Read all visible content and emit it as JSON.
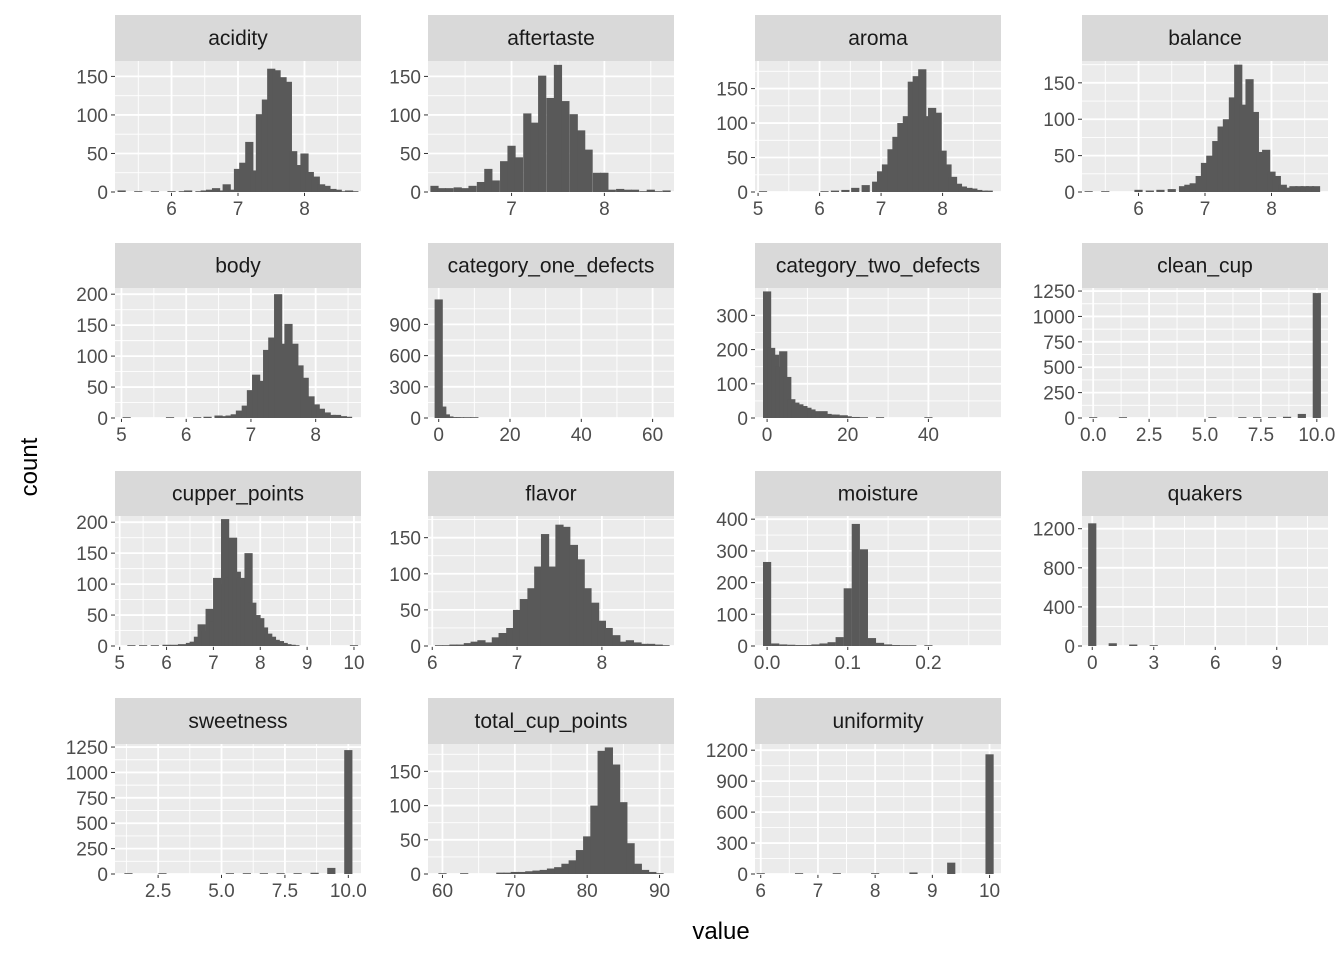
{
  "colors": {
    "panel_background": "#EBEBEB",
    "strip_background": "#D9D9D9",
    "grid_major": "#FFFFFF",
    "bar_fill": "#595959",
    "tick_text": "#4D4D4D"
  },
  "chart_data": {
    "type": "histogram",
    "layout": "facet_wrap 4 columns, free scales",
    "xlabel": "value",
    "ylabel": "count",
    "grid": true,
    "panels": [
      {
        "title": "acidity",
        "xlim": [
          5.15,
          8.85
        ],
        "ylim": [
          0,
          170
        ],
        "x_ticks": [
          6,
          7,
          8
        ],
        "x_tick_labels": [
          "6",
          "7",
          "8"
        ],
        "y_ticks": [
          0,
          50,
          100,
          150
        ],
        "y_tick_labels": [
          "0",
          "50",
          "100",
          "150"
        ],
        "bin_x": [
          5.25,
          5.5,
          5.75,
          6.0,
          6.17,
          6.25,
          6.42,
          6.5,
          6.58,
          6.67,
          6.75,
          6.83,
          6.92,
          7.0,
          7.08,
          7.17,
          7.25,
          7.33,
          7.42,
          7.5,
          7.58,
          7.67,
          7.75,
          7.83,
          7.92,
          8.0,
          8.08,
          8.17,
          8.25,
          8.33,
          8.42,
          8.5,
          8.58,
          8.67,
          8.75
        ],
        "counts": [
          2,
          0,
          0,
          1,
          1,
          2,
          0,
          2,
          3,
          5,
          2,
          10,
          3,
          30,
          38,
          65,
          28,
          101,
          120,
          160,
          158,
          149,
          143,
          53,
          35,
          50,
          26,
          20,
          10,
          8,
          4,
          3,
          1,
          2,
          1
        ]
      },
      {
        "title": "aftertaste",
        "xlim": [
          6.1,
          8.75
        ],
        "ylim": [
          0,
          170
        ],
        "x_ticks": [
          7,
          8
        ],
        "x_tick_labels": [
          "7",
          "8"
        ],
        "y_ticks": [
          0,
          50,
          100,
          150
        ],
        "y_tick_labels": [
          "0",
          "50",
          "100",
          "150"
        ],
        "bin_x": [
          6.17,
          6.25,
          6.33,
          6.42,
          6.5,
          6.58,
          6.67,
          6.75,
          6.83,
          6.92,
          7.0,
          7.08,
          7.17,
          7.25,
          7.33,
          7.42,
          7.5,
          7.58,
          7.67,
          7.75,
          7.83,
          7.92,
          8.0,
          8.08,
          8.17,
          8.25,
          8.33,
          8.42,
          8.5,
          8.58,
          8.67
        ],
        "counts": [
          8,
          5,
          5,
          6,
          5,
          8,
          13,
          30,
          15,
          40,
          60,
          45,
          102,
          90,
          151,
          122,
          165,
          118,
          101,
          80,
          55,
          25,
          25,
          3,
          4,
          3,
          3,
          1,
          3,
          1,
          2
        ]
      },
      {
        "title": "aroma",
        "xlim": [
          4.95,
          8.95
        ],
        "ylim": [
          0,
          190
        ],
        "x_ticks": [
          5,
          6,
          7,
          8
        ],
        "x_tick_labels": [
          "5",
          "6",
          "7",
          "8"
        ],
        "y_ticks": [
          0,
          50,
          100,
          150
        ],
        "y_tick_labels": [
          "0",
          "50",
          "100",
          "150"
        ],
        "bin_x": [
          5.08,
          6.08,
          6.25,
          6.42,
          6.58,
          6.75,
          6.92,
          7.0,
          7.08,
          7.17,
          7.25,
          7.33,
          7.42,
          7.5,
          7.58,
          7.67,
          7.75,
          7.83,
          7.92,
          8.0,
          8.08,
          8.17,
          8.25,
          8.33,
          8.42,
          8.5,
          8.58,
          8.67,
          8.75
        ],
        "counts": [
          1,
          1,
          2,
          3,
          6,
          10,
          15,
          30,
          40,
          62,
          80,
          100,
          110,
          160,
          168,
          178,
          110,
          122,
          115,
          60,
          40,
          22,
          12,
          8,
          6,
          5,
          3,
          2,
          2
        ]
      },
      {
        "title": "balance",
        "xlim": [
          5.15,
          8.85
        ],
        "ylim": [
          0,
          180
        ],
        "x_ticks": [
          6,
          7,
          8
        ],
        "x_tick_labels": [
          "6",
          "7",
          "8"
        ],
        "y_ticks": [
          0,
          50,
          100,
          150
        ],
        "y_tick_labels": [
          "0",
          "50",
          "100",
          "150"
        ],
        "bin_x": [
          5.25,
          5.5,
          6.0,
          6.17,
          6.33,
          6.5,
          6.67,
          6.75,
          6.83,
          6.92,
          7.0,
          7.08,
          7.17,
          7.25,
          7.33,
          7.42,
          7.5,
          7.58,
          7.67,
          7.75,
          7.83,
          7.92,
          8.0,
          8.08,
          8.17,
          8.25,
          8.33,
          8.42,
          8.5,
          8.58,
          8.67
        ],
        "counts": [
          1,
          1,
          3,
          2,
          3,
          4,
          8,
          10,
          12,
          22,
          40,
          50,
          70,
          90,
          100,
          130,
          175,
          120,
          155,
          110,
          55,
          58,
          28,
          22,
          10,
          6,
          8,
          8,
          8,
          8,
          8
        ]
      },
      {
        "title": "body",
        "xlim": [
          4.9,
          8.7
        ],
        "ylim": [
          0,
          210
        ],
        "x_ticks": [
          5,
          6,
          7,
          8
        ],
        "x_tick_labels": [
          "5",
          "6",
          "7",
          "8"
        ],
        "y_ticks": [
          0,
          50,
          100,
          150,
          200
        ],
        "y_tick_labels": [
          "0",
          "50",
          "100",
          "150",
          "200"
        ],
        "bin_x": [
          5.08,
          5.75,
          6.17,
          6.33,
          6.5,
          6.58,
          6.67,
          6.75,
          6.83,
          6.92,
          7.0,
          7.08,
          7.17,
          7.25,
          7.33,
          7.42,
          7.5,
          7.58,
          7.67,
          7.75,
          7.83,
          7.92,
          8.0,
          8.08,
          8.17,
          8.25,
          8.33,
          8.42,
          8.5
        ],
        "counts": [
          1,
          1,
          1,
          2,
          4,
          3,
          4,
          6,
          12,
          20,
          45,
          70,
          60,
          110,
          130,
          200,
          120,
          152,
          120,
          85,
          65,
          35,
          22,
          15,
          9,
          5,
          5,
          3,
          2
        ]
      },
      {
        "title": "category_one_defects",
        "xlim": [
          -3,
          66
        ],
        "ylim": [
          0,
          1250
        ],
        "x_ticks": [
          0,
          20,
          40,
          60
        ],
        "x_tick_labels": [
          "0",
          "20",
          "40",
          "60"
        ],
        "y_ticks": [
          0,
          300,
          600,
          900
        ],
        "y_tick_labels": [
          "0",
          "300",
          "600",
          "900"
        ],
        "bin_x": [
          0,
          1,
          2,
          3,
          4,
          5,
          6,
          8,
          10
        ],
        "counts": [
          1140,
          110,
          35,
          15,
          5,
          3,
          2,
          1,
          1
        ]
      },
      {
        "title": "category_two_defects",
        "xlim": [
          -3,
          58
        ],
        "ylim": [
          0,
          380
        ],
        "x_ticks": [
          0,
          20,
          40
        ],
        "x_tick_labels": [
          "0",
          "20",
          "40"
        ],
        "y_ticks": [
          0,
          100,
          200,
          300
        ],
        "y_tick_labels": [
          "0",
          "100",
          "200",
          "300"
        ],
        "bin_x": [
          0,
          1,
          2,
          3,
          4,
          5,
          6,
          7,
          8,
          9,
          10,
          11,
          12,
          13,
          14,
          15,
          16,
          17,
          18,
          19,
          20,
          22,
          24,
          28,
          40
        ],
        "counts": [
          370,
          205,
          185,
          150,
          195,
          120,
          55,
          45,
          40,
          35,
          30,
          25,
          20,
          15,
          20,
          12,
          10,
          10,
          5,
          8,
          5,
          3,
          2,
          1,
          1
        ]
      },
      {
        "title": "clean_cup",
        "xlim": [
          -0.5,
          10.5
        ],
        "ylim": [
          0,
          1280
        ],
        "x_ticks": [
          0.0,
          2.5,
          5.0,
          7.5,
          10.0
        ],
        "x_tick_labels": [
          "0.0",
          "2.5",
          "5.0",
          "7.5",
          "10.0"
        ],
        "y_ticks": [
          0,
          250,
          500,
          750,
          1000,
          1250
        ],
        "y_tick_labels": [
          "0",
          "250",
          "500",
          "750",
          "1000",
          "1250"
        ],
        "bin_x": [
          0,
          1.33,
          5.33,
          6.67,
          7.33,
          8.0,
          8.67,
          9.33,
          10.0
        ],
        "counts": [
          2,
          1,
          1,
          5,
          5,
          8,
          12,
          40,
          1230
        ]
      },
      {
        "title": "cupper_points",
        "xlim": [
          4.9,
          10.15
        ],
        "ylim": [
          0,
          210
        ],
        "x_ticks": [
          5,
          6,
          7,
          8,
          9,
          10
        ],
        "x_tick_labels": [
          "5",
          "6",
          "7",
          "8",
          "9",
          "10"
        ],
        "y_ticks": [
          0,
          50,
          100,
          150,
          200
        ],
        "y_tick_labels": [
          "0",
          "50",
          "100",
          "150",
          "200"
        ],
        "bin_x": [
          5.25,
          5.5,
          5.75,
          6.0,
          6.17,
          6.33,
          6.5,
          6.58,
          6.67,
          6.75,
          6.83,
          6.92,
          7.0,
          7.08,
          7.17,
          7.25,
          7.33,
          7.42,
          7.5,
          7.58,
          7.67,
          7.75,
          7.83,
          7.92,
          8.0,
          8.08,
          8.17,
          8.25,
          8.33,
          8.42,
          8.5,
          8.58,
          8.67,
          8.75,
          10.0
        ],
        "counts": [
          1,
          1,
          1,
          2,
          2,
          3,
          5,
          7,
          15,
          35,
          25,
          60,
          40,
          110,
          100,
          205,
          110,
          175,
          120,
          110,
          95,
          150,
          70,
          50,
          45,
          30,
          20,
          15,
          10,
          8,
          5,
          3,
          2,
          1,
          1
        ]
      },
      {
        "title": "flavor",
        "xlim": [
          5.95,
          8.85
        ],
        "ylim": [
          0,
          180
        ],
        "x_ticks": [
          6,
          7,
          8
        ],
        "x_tick_labels": [
          "6",
          "7",
          "8"
        ],
        "y_ticks": [
          0,
          50,
          100,
          150
        ],
        "y_tick_labels": [
          "0",
          "50",
          "100",
          "150"
        ],
        "bin_x": [
          6.08,
          6.17,
          6.25,
          6.33,
          6.42,
          6.5,
          6.58,
          6.67,
          6.75,
          6.83,
          6.92,
          7.0,
          7.08,
          7.17,
          7.25,
          7.33,
          7.42,
          7.5,
          7.58,
          7.67,
          7.75,
          7.83,
          7.92,
          8.0,
          8.08,
          8.17,
          8.25,
          8.33,
          8.42,
          8.5,
          8.58,
          8.67,
          8.75
        ],
        "counts": [
          1,
          1,
          2,
          2,
          4,
          6,
          8,
          5,
          12,
          18,
          25,
          50,
          65,
          80,
          110,
          155,
          110,
          168,
          165,
          140,
          120,
          80,
          60,
          35,
          25,
          15,
          6,
          8,
          5,
          3,
          3,
          2,
          1
        ]
      },
      {
        "title": "moisture",
        "xlim": [
          -0.015,
          0.29
        ],
        "ylim": [
          0,
          410
        ],
        "x_ticks": [
          0.0,
          0.1,
          0.2
        ],
        "x_tick_labels": [
          "0.0",
          "0.1",
          "0.2"
        ],
        "y_ticks": [
          0,
          100,
          200,
          300,
          400
        ],
        "y_tick_labels": [
          "0",
          "100",
          "200",
          "300",
          "400"
        ],
        "bin_x": [
          0,
          0.01,
          0.02,
          0.03,
          0.04,
          0.05,
          0.06,
          0.07,
          0.08,
          0.09,
          0.1,
          0.11,
          0.12,
          0.13,
          0.14,
          0.15,
          0.16,
          0.17,
          0.18,
          0.2
        ],
        "counts": [
          265,
          8,
          5,
          4,
          3,
          3,
          5,
          8,
          12,
          28,
          182,
          385,
          305,
          25,
          10,
          5,
          3,
          2,
          2,
          1
        ]
      },
      {
        "title": "quakers",
        "xlim": [
          -0.5,
          11.5
        ],
        "ylim": [
          0,
          1330
        ],
        "x_ticks": [
          0,
          3,
          6,
          9
        ],
        "x_tick_labels": [
          "0",
          "3",
          "6",
          "9"
        ],
        "y_ticks": [
          0,
          400,
          800,
          1200
        ],
        "y_tick_labels": [
          "0",
          "400",
          "800",
          "1200"
        ],
        "bin_x": [
          0,
          1,
          2,
          3
        ],
        "counts": [
          1255,
          28,
          15,
          3
        ]
      },
      {
        "title": "sweetness",
        "xlim": [
          0.8,
          10.5
        ],
        "ylim": [
          0,
          1280
        ],
        "x_ticks": [
          2.5,
          5.0,
          7.5,
          10.0
        ],
        "x_tick_labels": [
          "2.5",
          "5.0",
          "7.5",
          "10.0"
        ],
        "y_ticks": [
          0,
          250,
          500,
          750,
          1000,
          1250
        ],
        "y_tick_labels": [
          "0",
          "250",
          "500",
          "750",
          "1000",
          "1250"
        ],
        "bin_x": [
          1.33,
          2.67,
          5.33,
          6.0,
          6.67,
          7.33,
          8.0,
          8.67,
          9.33,
          10.0
        ],
        "counts": [
          5,
          1,
          1,
          3,
          5,
          5,
          8,
          12,
          60,
          1220
        ]
      },
      {
        "title": "total_cup_points",
        "xlim": [
          58,
          92
        ],
        "ylim": [
          0,
          190
        ],
        "x_ticks": [
          60,
          70,
          80,
          90
        ],
        "x_tick_labels": [
          "60",
          "70",
          "80",
          "90"
        ],
        "y_ticks": [
          0,
          50,
          100,
          150
        ],
        "y_tick_labels": [
          "0",
          "50",
          "100",
          "150"
        ],
        "bin_x": [
          60,
          63,
          68,
          69,
          70,
          71,
          72,
          73,
          74,
          75,
          76,
          77,
          78,
          79,
          80,
          81,
          82,
          83,
          84,
          85,
          86,
          87,
          88,
          89,
          90
        ],
        "counts": [
          1,
          1,
          2,
          2,
          3,
          3,
          4,
          5,
          6,
          8,
          10,
          15,
          20,
          35,
          55,
          100,
          180,
          185,
          160,
          105,
          45,
          15,
          6,
          3,
          1
        ]
      },
      {
        "title": "uniformity",
        "xlim": [
          5.9,
          10.2
        ],
        "ylim": [
          0,
          1260
        ],
        "x_ticks": [
          6,
          7,
          8,
          9,
          10
        ],
        "x_tick_labels": [
          "6",
          "7",
          "8",
          "9",
          "10"
        ],
        "y_ticks": [
          0,
          300,
          600,
          900,
          1200
        ],
        "y_tick_labels": [
          "0",
          "300",
          "600",
          "900",
          "1200"
        ],
        "bin_x": [
          6.0,
          6.67,
          7.33,
          8.0,
          8.67,
          9.33,
          10.0
        ],
        "counts": [
          2,
          3,
          3,
          8,
          15,
          110,
          1160
        ]
      }
    ]
  }
}
